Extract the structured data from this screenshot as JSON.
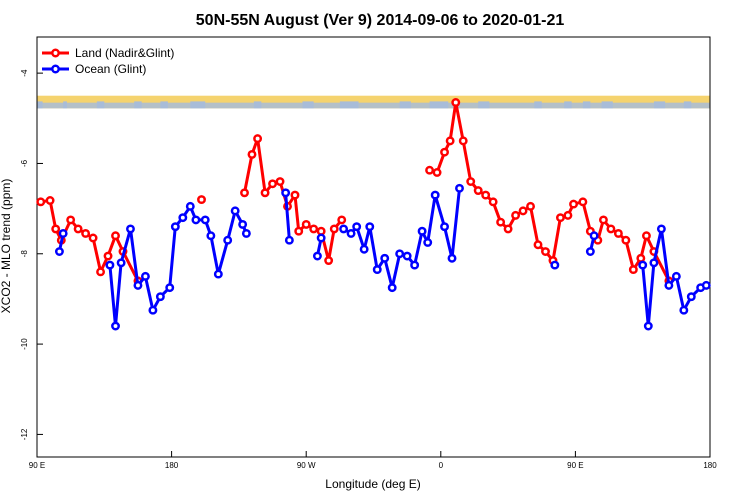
{
  "chart_data": {
    "type": "line",
    "title": "50N-55N August (Ver 9)   2014-09-06 to 2020-01-21",
    "xlabel": "Longitude (deg E)",
    "ylabel": "XCO2 - MLO trend (ppm)",
    "xlim": [
      90,
      450
    ],
    "ylim": [
      -12.5,
      -3.2
    ],
    "x_ticks": [
      90,
      162,
      234,
      306,
      378,
      450
    ],
    "x_tick_labels": [
      "90 E",
      "180",
      "90 W",
      "0",
      "90 E",
      "180"
    ],
    "y_ticks": [
      -4,
      -6,
      -8,
      -10,
      -12
    ],
    "y_tick_labels": [
      "-4",
      "-6",
      "-8",
      "-10",
      "-12"
    ],
    "grid": false,
    "legend_position": "top-left",
    "land_band_y": [
      -4.78,
      -4.5
    ],
    "series": [
      {
        "name": "Land (Nadir&Glint)",
        "color": "#ff0000",
        "segments": [
          [
            [
              92,
              -6.85
            ],
            [
              97,
              -6.82
            ],
            [
              100,
              -7.45
            ],
            [
              103,
              -7.7
            ],
            [
              108,
              -7.25
            ],
            [
              112,
              -7.45
            ],
            [
              116,
              -7.55
            ],
            [
              120,
              -7.65
            ],
            [
              124,
              -8.4
            ],
            [
              128,
              -8.05
            ],
            [
              132,
              -7.6
            ],
            [
              136,
              -7.95
            ],
            [
              144,
              -8.6
            ]
          ],
          [
            [
              178,
              -6.8
            ]
          ],
          [
            [
              201,
              -6.65
            ],
            [
              205,
              -5.8
            ],
            [
              208,
              -5.45
            ],
            [
              212,
              -6.65
            ],
            [
              216,
              -6.45
            ],
            [
              220,
              -6.4
            ],
            [
              224,
              -6.95
            ],
            [
              228,
              -6.7
            ],
            [
              230,
              -7.5
            ],
            [
              234,
              -7.35
            ],
            [
              238,
              -7.45
            ],
            [
              242,
              -7.5
            ],
            [
              246,
              -8.15
            ],
            [
              249,
              -7.45
            ],
            [
              253,
              -7.25
            ]
          ],
          [
            [
              300,
              -6.15
            ],
            [
              304,
              -6.2
            ],
            [
              308,
              -5.75
            ],
            [
              311,
              -5.5
            ],
            [
              314,
              -4.65
            ],
            [
              318,
              -5.5
            ],
            [
              322,
              -6.4
            ],
            [
              326,
              -6.6
            ],
            [
              330,
              -6.7
            ],
            [
              334,
              -6.85
            ],
            [
              338,
              -7.3
            ],
            [
              342,
              -7.45
            ],
            [
              346,
              -7.15
            ],
            [
              350,
              -7.05
            ],
            [
              354,
              -6.95
            ],
            [
              358,
              -7.8
            ],
            [
              362,
              -7.95
            ],
            [
              366,
              -8.15
            ],
            [
              370,
              -7.2
            ],
            [
              374,
              -7.15
            ],
            [
              377,
              -6.9
            ],
            [
              382,
              -6.85
            ],
            [
              386,
              -7.5
            ],
            [
              390,
              -7.7
            ],
            [
              393,
              -7.25
            ],
            [
              397,
              -7.45
            ],
            [
              401,
              -7.55
            ],
            [
              405,
              -7.7
            ],
            [
              409,
              -8.35
            ],
            [
              413,
              -8.1
            ],
            [
              416,
              -7.6
            ],
            [
              420,
              -7.95
            ],
            [
              428,
              -8.6
            ]
          ]
        ]
      },
      {
        "name": "Ocean (Glint)",
        "color": "#0000ff",
        "segments": [
          [
            [
              102,
              -7.95
            ],
            [
              104,
              -7.55
            ]
          ],
          [
            [
              129,
              -8.25
            ],
            [
              132,
              -9.6
            ],
            [
              135,
              -8.2
            ],
            [
              140,
              -7.45
            ],
            [
              144,
              -8.7
            ],
            [
              148,
              -8.5
            ],
            [
              152,
              -9.25
            ],
            [
              156,
              -8.95
            ],
            [
              161,
              -8.75
            ],
            [
              164,
              -7.4
            ],
            [
              168,
              -7.2
            ],
            [
              172,
              -6.95
            ],
            [
              175,
              -7.25
            ],
            [
              180,
              -7.25
            ],
            [
              183,
              -7.6
            ],
            [
              187,
              -8.45
            ],
            [
              192,
              -7.7
            ],
            [
              196,
              -7.05
            ],
            [
              200,
              -7.35
            ],
            [
              202,
              -7.55
            ]
          ],
          [
            [
              223,
              -6.65
            ],
            [
              225,
              -7.7
            ]
          ],
          [
            [
              240,
              -8.05
            ],
            [
              242,
              -7.65
            ]
          ],
          [
            [
              254,
              -7.45
            ],
            [
              258,
              -7.55
            ],
            [
              261,
              -7.4
            ],
            [
              265,
              -7.9
            ],
            [
              268,
              -7.4
            ],
            [
              272,
              -8.35
            ],
            [
              276,
              -8.1
            ],
            [
              280,
              -8.75
            ],
            [
              284,
              -8.0
            ],
            [
              288,
              -8.05
            ],
            [
              292,
              -8.25
            ],
            [
              296,
              -7.5
            ],
            [
              299,
              -7.75
            ],
            [
              303,
              -6.7
            ],
            [
              308,
              -7.4
            ],
            [
              312,
              -8.1
            ],
            [
              316,
              -6.55
            ]
          ],
          [
            [
              367,
              -8.25
            ]
          ],
          [
            [
              386,
              -7.95
            ],
            [
              388,
              -7.6
            ]
          ],
          [
            [
              414,
              -8.25
            ],
            [
              417,
              -9.6
            ],
            [
              420,
              -8.2
            ],
            [
              424,
              -7.45
            ],
            [
              428,
              -8.7
            ],
            [
              432,
              -8.5
            ],
            [
              436,
              -9.25
            ],
            [
              440,
              -8.95
            ],
            [
              445,
              -8.75
            ],
            [
              448,
              -8.7
            ]
          ]
        ]
      }
    ]
  },
  "colors": {
    "land_band_ocean": "#a8bcd8",
    "land_band_land": "#f5d36e"
  }
}
